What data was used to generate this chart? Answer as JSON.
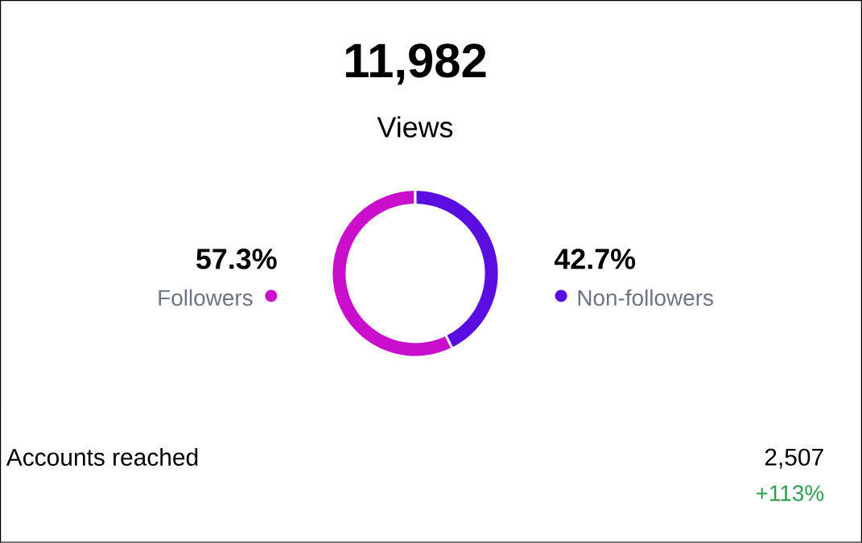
{
  "chart_data": {
    "type": "donut",
    "title": "11,982",
    "subtitle": "Views",
    "categories": [
      "Followers",
      "Non-followers"
    ],
    "values": [
      57.3,
      42.7
    ],
    "value_labels": [
      "57.3%",
      "42.7%"
    ],
    "colors": [
      "#c90fcc",
      "#5a0ddf"
    ],
    "annotations": [
      "Accounts reached",
      "2,507",
      "+113%"
    ]
  }
}
